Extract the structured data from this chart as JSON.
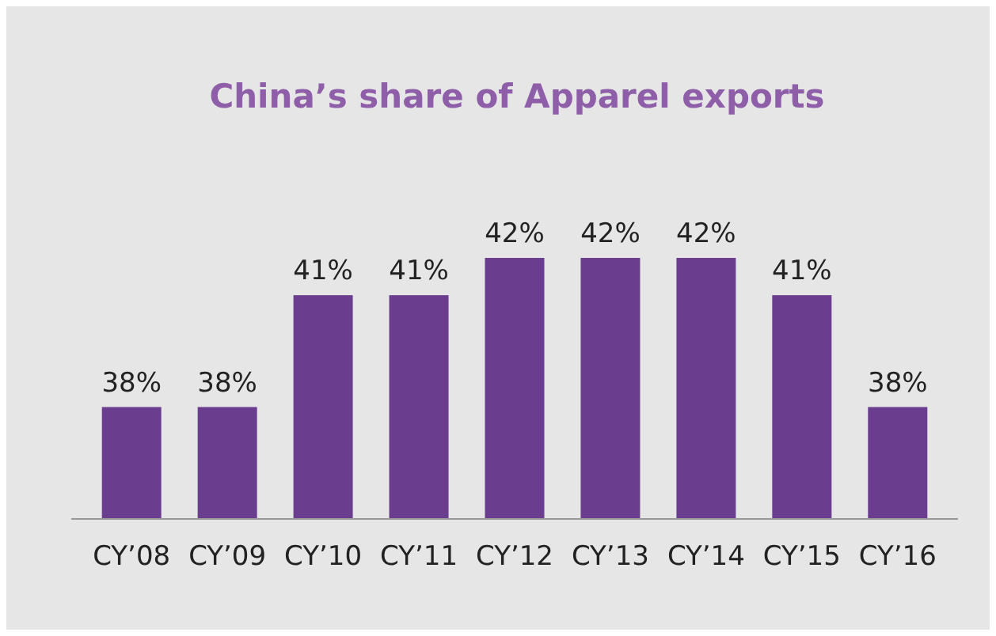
{
  "chart_data": {
    "type": "bar",
    "title": "China’s share of Apparel exports",
    "categories": [
      "CY’08",
      "CY’09",
      "CY’10",
      "CY’11",
      "CY’12",
      "CY’13",
      "CY’14",
      "CY’15",
      "CY’16"
    ],
    "values": [
      38,
      38,
      41,
      41,
      42,
      42,
      42,
      41,
      38
    ],
    "value_labels": [
      "38%",
      "38%",
      "41%",
      "41%",
      "42%",
      "42%",
      "42%",
      "41%",
      "38%"
    ],
    "color": "#6a3d8e",
    "ylim": [
      35,
      42
    ],
    "tick_labels": "x"
  }
}
